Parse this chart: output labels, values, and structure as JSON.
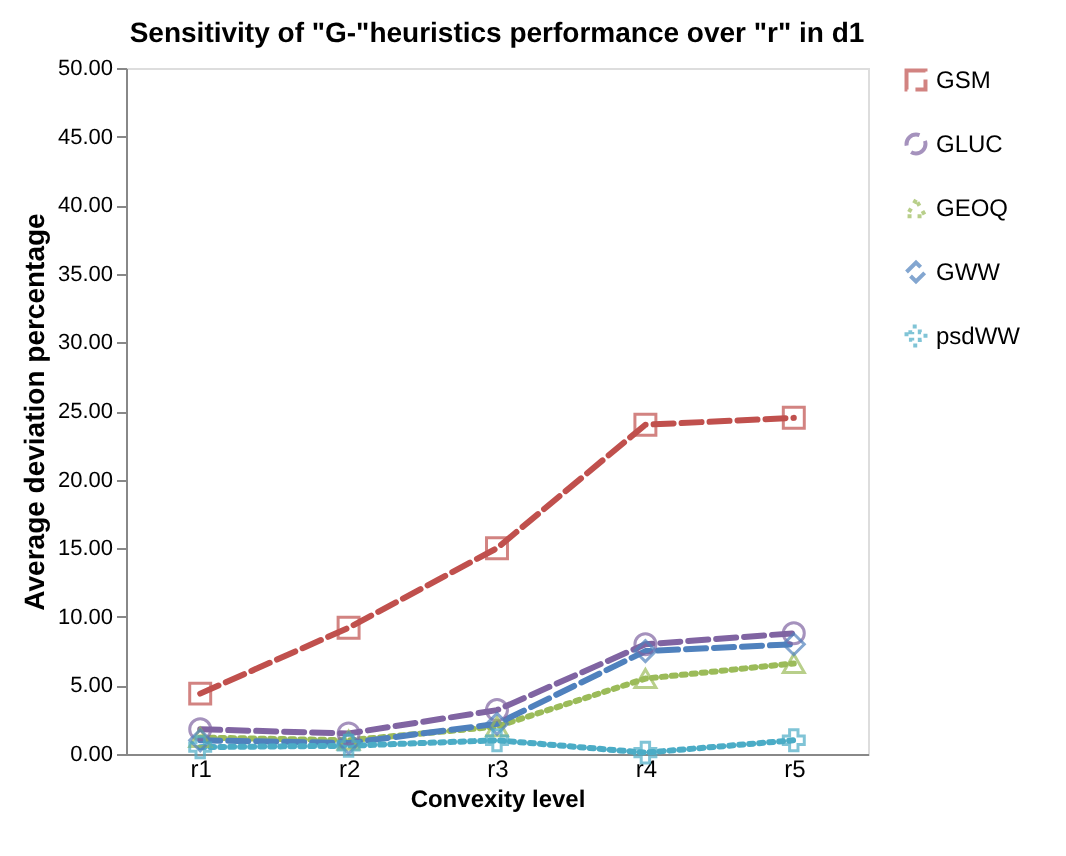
{
  "chart_data": {
    "type": "line",
    "title": "Sensitivity of \"G-\"heuristics performance over \"r\"  in d1",
    "xlabel": "Convexity level",
    "ylabel": "Average deviation percentage",
    "categories": [
      "r1",
      "r2",
      "r3",
      "r4",
      "r5"
    ],
    "ylim": [
      0,
      50
    ],
    "yticks": [
      {
        "value": 0,
        "label": "0.00"
      },
      {
        "value": 5,
        "label": "5.00"
      },
      {
        "value": 10,
        "label": "10.00"
      },
      {
        "value": 15,
        "label": "15.00"
      },
      {
        "value": 20,
        "label": "20.00"
      },
      {
        "value": 25,
        "label": "25.00"
      },
      {
        "value": 30,
        "label": "30.00"
      },
      {
        "value": 35,
        "label": "35.00"
      },
      {
        "value": 40,
        "label": "40.00"
      },
      {
        "value": 45,
        "label": "45.00"
      },
      {
        "value": 50,
        "label": "50.00"
      }
    ],
    "grid": false,
    "legend": "right",
    "series": [
      {
        "name": "GSM",
        "color": "#c0504d",
        "marker": "square",
        "line_style": "dashed",
        "values": [
          4.4,
          9.2,
          15.0,
          24.0,
          24.5
        ]
      },
      {
        "name": "GLUC",
        "color": "#8064a2",
        "marker": "circle",
        "line_style": "dashed",
        "values": [
          1.8,
          1.5,
          3.2,
          8.0,
          8.8
        ]
      },
      {
        "name": "GEOQ",
        "color": "#9bbb59",
        "marker": "triangle",
        "line_style": "dotted",
        "values": [
          1.2,
          1.0,
          2.0,
          5.5,
          6.6
        ]
      },
      {
        "name": "GWW",
        "color": "#4f81bd",
        "marker": "diamond",
        "line_style": "dashed",
        "values": [
          1.0,
          0.8,
          2.2,
          7.5,
          8.0
        ]
      },
      {
        "name": "psdWW",
        "color": "#4bacc6",
        "marker": "cross",
        "line_style": "dotted",
        "values": [
          0.5,
          0.6,
          1.0,
          0.1,
          1.0
        ]
      }
    ]
  }
}
